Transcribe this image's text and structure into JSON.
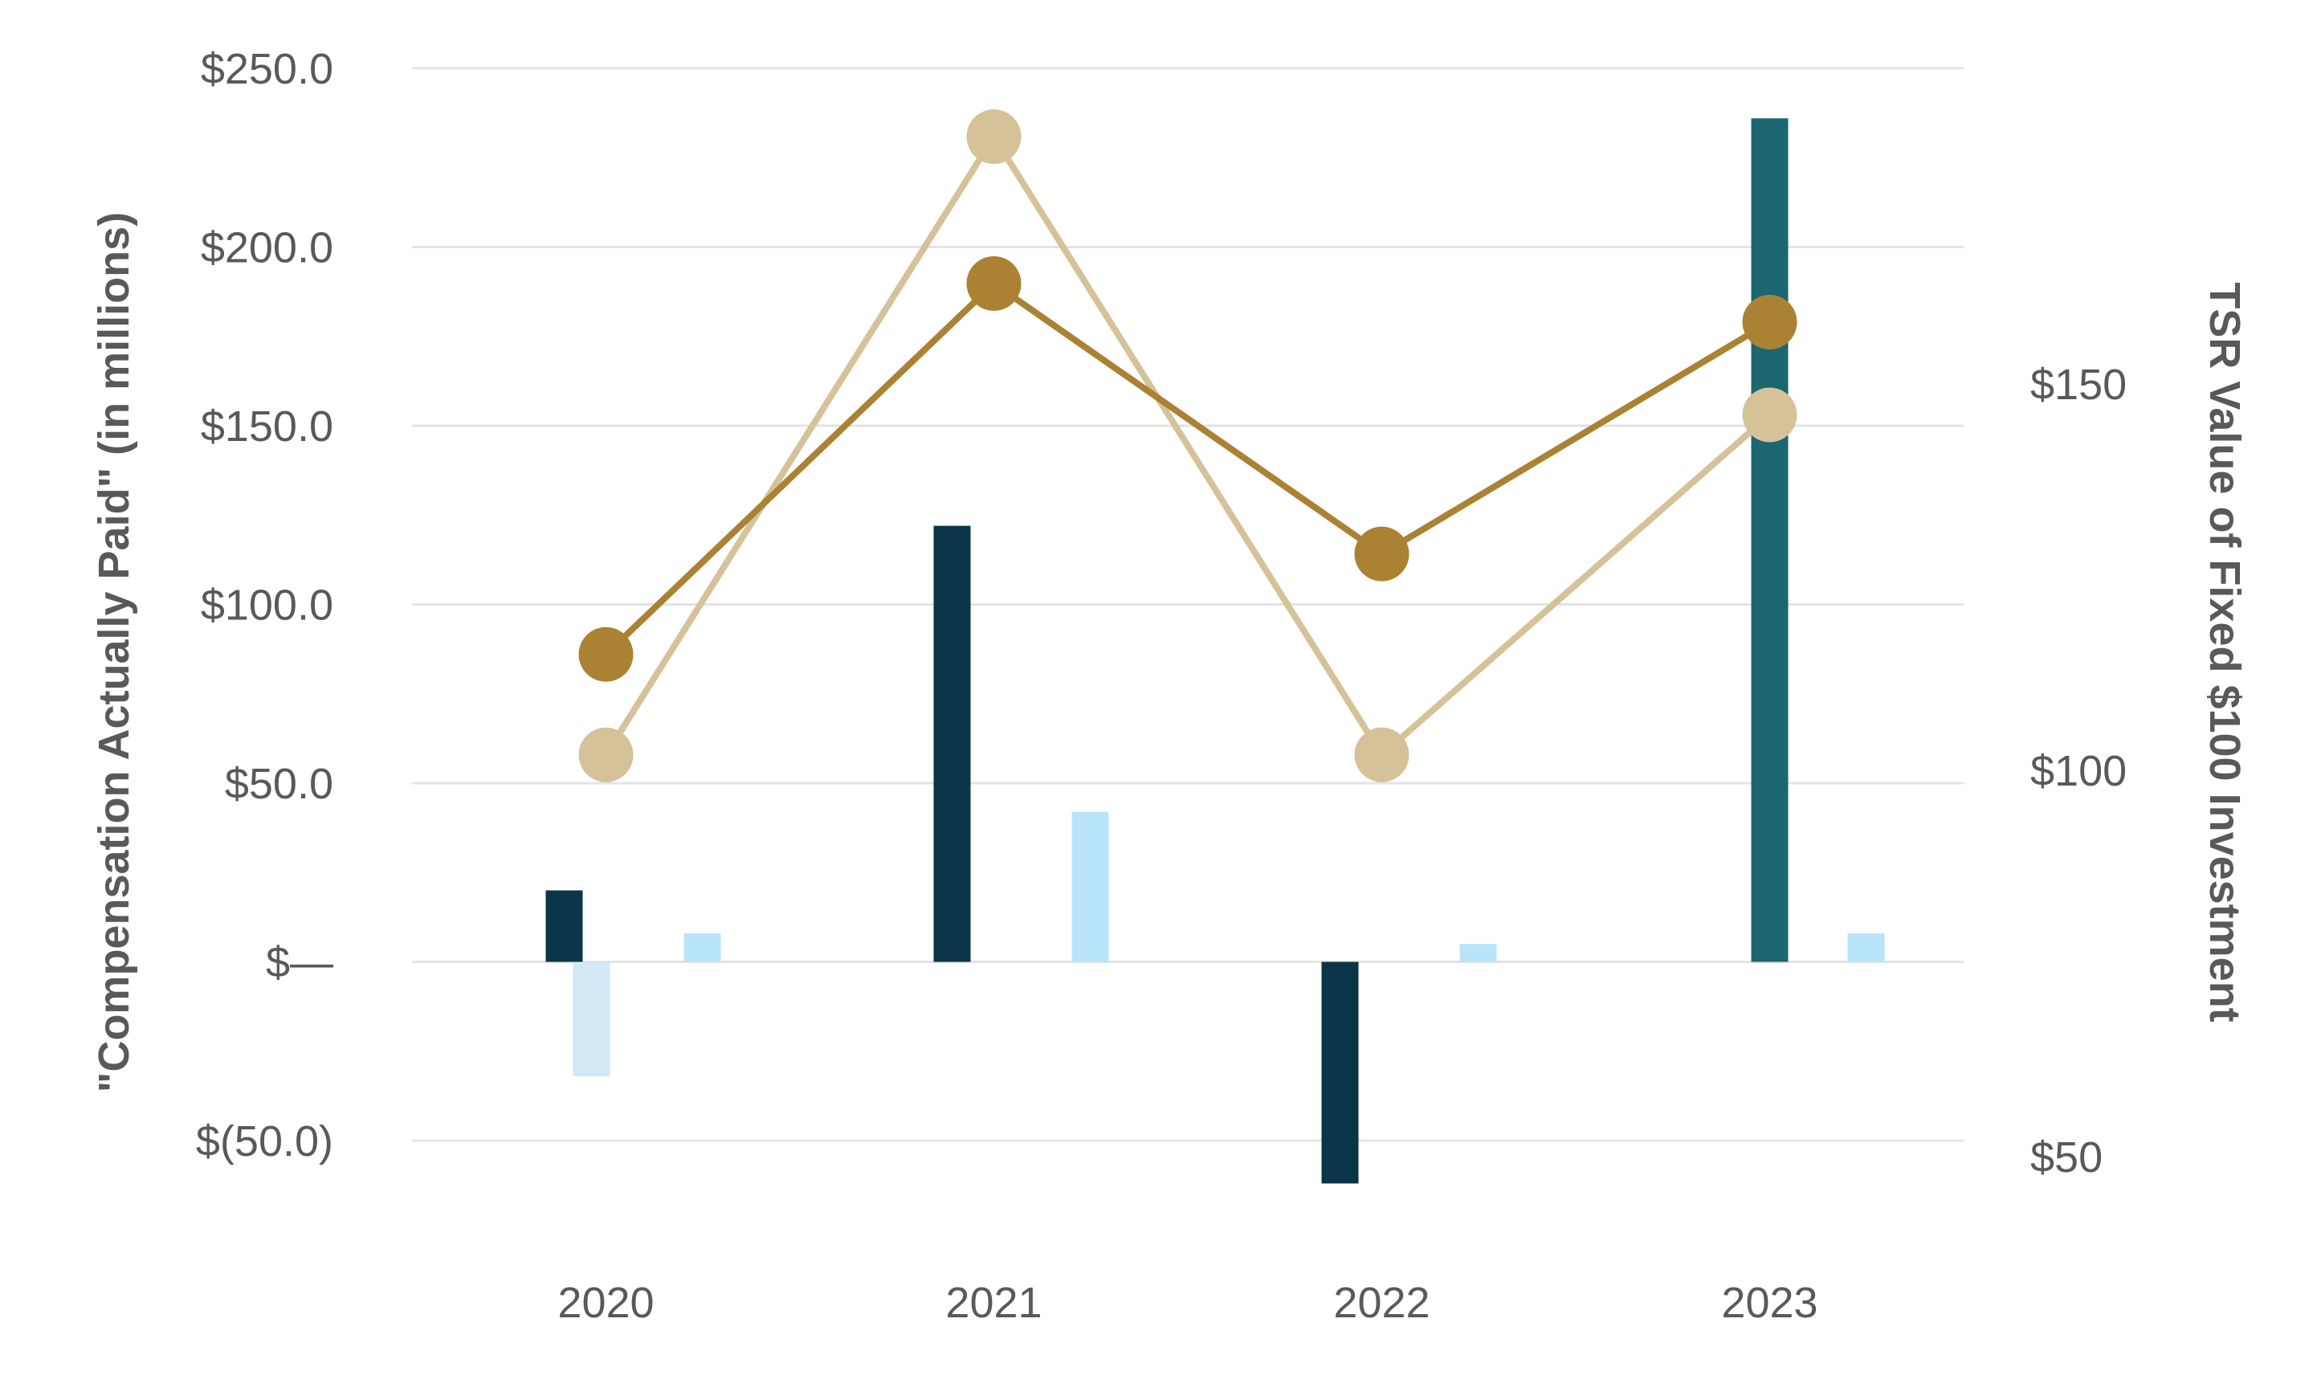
{
  "chart_data": {
    "type": "bar",
    "title": "",
    "categories": [
      "2020",
      "2021",
      "2022",
      "2023"
    ],
    "ylabel": "\"Compensation Actually Paid\" (in millions)",
    "y2label": "TSR Value of Fixed $100 Investment",
    "ylim": [
      -50,
      250
    ],
    "yticks": [
      -50,
      0,
      50,
      100,
      150,
      200,
      250
    ],
    "ytick_labels": [
      "$(50.0)",
      "$—",
      "$50.0",
      "$100.0",
      "$150.0",
      "$200.0",
      "$250.0"
    ],
    "y2lim": [
      50,
      150
    ],
    "y2ticks": [
      50,
      100,
      150
    ],
    "y2tick_labels": [
      "$50",
      "$100",
      "$150"
    ],
    "grid": true,
    "legend": "none",
    "bar_series": [
      {
        "color": "#0b3549",
        "values": [
          20,
          122,
          -62,
          null
        ]
      },
      {
        "color": "#1b6670",
        "values": [
          null,
          null,
          null,
          236
        ]
      },
      {
        "color": "#d3e7f5",
        "values": [
          -32,
          null,
          null,
          null
        ]
      },
      {
        "color": "#b8e5fa",
        "values": [
          8,
          42,
          5,
          8
        ]
      }
    ],
    "line_series": [
      {
        "color": "#ab8233",
        "axis": "right",
        "values": [
          115,
          163,
          128,
          158
        ]
      },
      {
        "color": "#d5c299",
        "axis": "right",
        "values": [
          102,
          182,
          102,
          146
        ]
      }
    ]
  }
}
